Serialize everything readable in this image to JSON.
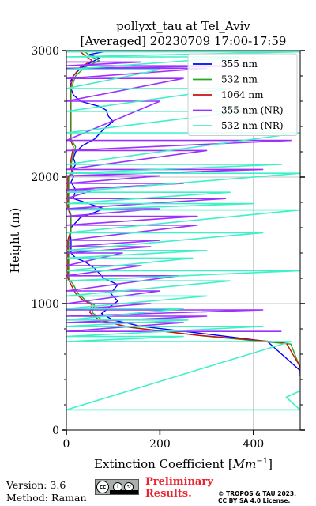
{
  "chart_data": {
    "type": "line",
    "title_line1": "pollyxt_tau at Tel_Aviv",
    "title_line2": "[Averaged] 20230709 17:00-17:59",
    "xlabel_prefix": "Extinction Coefficient [",
    "xlabel_unit_base": "Mm",
    "xlabel_unit_exp": "−1",
    "xlabel_suffix": "]",
    "ylabel": "Height (m)",
    "xlim": [
      0,
      500
    ],
    "ylim": [
      0,
      3000
    ],
    "xticks": [
      0,
      200,
      400
    ],
    "yticks": [
      0,
      1000,
      2000,
      3000
    ],
    "grid": true,
    "legend_position": "top-right",
    "series": [
      {
        "name": "355 nm",
        "color": "#0000ff",
        "width": 1.4,
        "points": [
          [
            500,
            430
          ],
          [
            500,
            470
          ],
          [
            430,
            700
          ],
          [
            300,
            760
          ],
          [
            160,
            820
          ],
          [
            100,
            870
          ],
          [
            75,
            920
          ],
          [
            95,
            980
          ],
          [
            110,
            1020
          ],
          [
            95,
            1080
          ],
          [
            110,
            1150
          ],
          [
            80,
            1200
          ],
          [
            60,
            1280
          ],
          [
            40,
            1330
          ],
          [
            20,
            1360
          ],
          [
            10,
            1400
          ],
          [
            10,
            1500
          ],
          [
            8,
            1560
          ],
          [
            10,
            1600
          ],
          [
            20,
            1640
          ],
          [
            30,
            1680
          ],
          [
            60,
            1720
          ],
          [
            80,
            1750
          ],
          [
            40,
            1800
          ],
          [
            15,
            1830
          ],
          [
            20,
            1900
          ],
          [
            10,
            1960
          ],
          [
            15,
            2000
          ],
          [
            12,
            2050
          ],
          [
            20,
            2100
          ],
          [
            15,
            2150
          ],
          [
            20,
            2200
          ],
          [
            35,
            2250
          ],
          [
            60,
            2300
          ],
          [
            80,
            2380
          ],
          [
            100,
            2440
          ],
          [
            90,
            2480
          ],
          [
            85,
            2530
          ],
          [
            70,
            2560
          ],
          [
            30,
            2600
          ],
          [
            15,
            2650
          ],
          [
            10,
            2700
          ],
          [
            8,
            2750
          ],
          [
            15,
            2800
          ],
          [
            30,
            2860
          ],
          [
            50,
            2900
          ],
          [
            70,
            2940
          ],
          [
            50,
            2970
          ],
          [
            80,
            2990
          ]
        ]
      },
      {
        "name": "532 nm",
        "color": "#1faa1f",
        "width": 1.4,
        "points": [
          [
            500,
            445
          ],
          [
            500,
            490
          ],
          [
            480,
            680
          ],
          [
            290,
            745
          ],
          [
            140,
            810
          ],
          [
            80,
            860
          ],
          [
            55,
            930
          ],
          [
            60,
            990
          ],
          [
            40,
            1030
          ],
          [
            25,
            1080
          ],
          [
            15,
            1150
          ],
          [
            5,
            1200
          ],
          [
            5,
            1500
          ],
          [
            10,
            1560
          ],
          [
            10,
            1700
          ],
          [
            5,
            1760
          ],
          [
            5,
            2000
          ],
          [
            15,
            2040
          ],
          [
            10,
            2100
          ],
          [
            15,
            2180
          ],
          [
            20,
            2240
          ],
          [
            10,
            2300
          ],
          [
            10,
            2700
          ],
          [
            20,
            2800
          ],
          [
            40,
            2870
          ],
          [
            70,
            2920
          ],
          [
            50,
            2960
          ],
          [
            40,
            2990
          ]
        ]
      },
      {
        "name": "1064 nm",
        "color": "#cc1111",
        "width": 1.4,
        "points": [
          [
            500,
            450
          ],
          [
            500,
            500
          ],
          [
            470,
            690
          ],
          [
            280,
            750
          ],
          [
            130,
            815
          ],
          [
            70,
            870
          ],
          [
            50,
            930
          ],
          [
            55,
            990
          ],
          [
            35,
            1030
          ],
          [
            20,
            1080
          ],
          [
            10,
            1150
          ],
          [
            3,
            1200
          ],
          [
            3,
            1500
          ],
          [
            8,
            1560
          ],
          [
            8,
            1700
          ],
          [
            3,
            1760
          ],
          [
            3,
            2000
          ],
          [
            12,
            2040
          ],
          [
            8,
            2100
          ],
          [
            12,
            2180
          ],
          [
            15,
            2240
          ],
          [
            8,
            2300
          ],
          [
            8,
            2700
          ],
          [
            15,
            2800
          ],
          [
            30,
            2870
          ],
          [
            55,
            2920
          ],
          [
            40,
            2960
          ],
          [
            30,
            2990
          ]
        ]
      },
      {
        "name": "355 nm (NR)",
        "color": "#9b30ff",
        "width": 1.6,
        "points": [
          [
            0,
            2910
          ],
          [
            160,
            2910
          ],
          [
            0,
            2880
          ],
          [
            400,
            2880
          ],
          [
            0,
            2860
          ],
          [
            300,
            2860
          ],
          [
            0,
            2780
          ],
          [
            250,
            2780
          ],
          [
            0,
            2600
          ],
          [
            200,
            2600
          ],
          [
            0,
            2290
          ],
          [
            480,
            2290
          ],
          [
            0,
            2210
          ],
          [
            300,
            2210
          ],
          [
            0,
            2060
          ],
          [
            420,
            2060
          ],
          [
            0,
            2010
          ],
          [
            200,
            2010
          ],
          [
            0,
            1950
          ],
          [
            250,
            1950
          ],
          [
            0,
            1900
          ],
          [
            60,
            1900
          ],
          [
            0,
            1830
          ],
          [
            340,
            1830
          ],
          [
            0,
            1750
          ],
          [
            200,
            1750
          ],
          [
            0,
            1690
          ],
          [
            280,
            1690
          ],
          [
            0,
            1620
          ],
          [
            280,
            1620
          ],
          [
            0,
            1500
          ],
          [
            200,
            1500
          ],
          [
            0,
            1450
          ],
          [
            180,
            1450
          ],
          [
            0,
            1400
          ],
          [
            120,
            1400
          ],
          [
            0,
            1300
          ],
          [
            160,
            1300
          ],
          [
            0,
            1220
          ],
          [
            240,
            1220
          ],
          [
            0,
            1100
          ],
          [
            200,
            1100
          ],
          [
            0,
            1000
          ],
          [
            180,
            1000
          ],
          [
            0,
            950
          ],
          [
            420,
            950
          ],
          [
            0,
            900
          ],
          [
            300,
            900
          ],
          [
            0,
            850
          ],
          [
            250,
            850
          ],
          [
            0,
            780
          ],
          [
            460,
            780
          ]
        ]
      },
      {
        "name": "532 nm (NR)",
        "color": "#40f0c8",
        "width": 1.6,
        "points": [
          [
            0,
            2990
          ],
          [
            500,
            2990
          ],
          [
            0,
            2950
          ],
          [
            370,
            2950
          ],
          [
            0,
            2850
          ],
          [
            200,
            2850
          ],
          [
            0,
            2700
          ],
          [
            350,
            2700
          ],
          [
            0,
            2520
          ],
          [
            380,
            2520
          ],
          [
            0,
            2350
          ],
          [
            500,
            2350
          ],
          [
            0,
            2100
          ],
          [
            460,
            2100
          ],
          [
            0,
            2030
          ],
          [
            500,
            2030
          ],
          [
            0,
            1880
          ],
          [
            350,
            1880
          ],
          [
            0,
            1790
          ],
          [
            400,
            1790
          ],
          [
            0,
            1740
          ],
          [
            500,
            1740
          ],
          [
            0,
            1560
          ],
          [
            420,
            1560
          ],
          [
            0,
            1420
          ],
          [
            300,
            1420
          ],
          [
            0,
            1360
          ],
          [
            270,
            1360
          ],
          [
            0,
            1260
          ],
          [
            500,
            1260
          ],
          [
            0,
            1180
          ],
          [
            350,
            1180
          ],
          [
            0,
            1060
          ],
          [
            300,
            1060
          ],
          [
            0,
            960
          ],
          [
            250,
            960
          ],
          [
            0,
            870
          ],
          [
            260,
            870
          ],
          [
            0,
            820
          ],
          [
            420,
            820
          ],
          [
            0,
            740
          ],
          [
            250,
            740
          ],
          [
            0,
            700
          ],
          [
            480,
            700
          ],
          [
            0,
            160
          ],
          [
            500,
            160
          ],
          [
            470,
            260
          ],
          [
            500,
            310
          ]
        ]
      }
    ]
  },
  "footer": {
    "version": "Version: 3.6",
    "method": "Method: Raman",
    "preliminary_line1": "Preliminary",
    "preliminary_line2": "Results.",
    "copyright_line1": "© TROPOS & TAU 2023.",
    "copyright_line2": "CC BY SA 4.0 License."
  }
}
